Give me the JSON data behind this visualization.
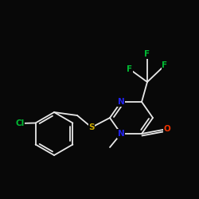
{
  "bg_color": "#080808",
  "bond_color": "#e8e8e8",
  "bond_width": 1.3,
  "atom_colors": {
    "N": "#2222ee",
    "S": "#ccaa00",
    "O": "#ee3300",
    "F": "#00bb33",
    "Cl": "#00bb33",
    "C": "#e8e8e8"
  },
  "font_size_atom": 7.5
}
